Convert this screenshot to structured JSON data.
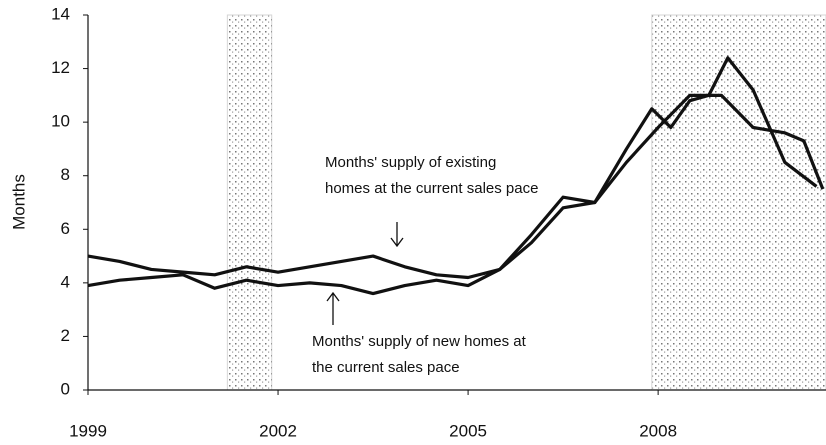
{
  "chart_data": {
    "type": "line",
    "y_label": "Months",
    "xlim": [
      1999,
      2010.65
    ],
    "xticks": [
      1999,
      2002,
      2005,
      2008
    ],
    "ylim": [
      0,
      14
    ],
    "yticks": [
      0,
      2,
      4,
      6,
      8,
      10,
      12,
      14
    ],
    "shaded_periods": [
      [
        2001.2,
        2001.9
      ],
      [
        2007.9,
        2010.65
      ]
    ],
    "shade_color": "#999999",
    "series": [
      {
        "name": "Months' supply of existing homes at the current sales pace",
        "color": "#111111",
        "x": [
          1999,
          1999.5,
          2000,
          2000.5,
          2001,
          2001.5,
          2002,
          2002.5,
          2003,
          2003.5,
          2004,
          2004.5,
          2005,
          2005.5,
          2006,
          2006.5,
          2007,
          2007.5,
          2008,
          2008.5,
          2009,
          2009.5,
          2010,
          2010.3,
          2010.6
        ],
        "values": [
          5.0,
          4.8,
          4.5,
          4.4,
          4.3,
          4.6,
          4.4,
          4.6,
          4.8,
          5.0,
          4.6,
          4.3,
          4.2,
          4.5,
          5.5,
          6.8,
          7.0,
          8.5,
          9.8,
          11.0,
          11.0,
          9.8,
          9.6,
          9.3,
          7.5
        ]
      },
      {
        "name": "Months' supply of new homes at the current sales pace",
        "color": "#111111",
        "x": [
          1999,
          1999.5,
          2000,
          2000.5,
          2001,
          2001.5,
          2002,
          2002.5,
          2003,
          2003.5,
          2004,
          2004.5,
          2005,
          2005.5,
          2006,
          2006.5,
          2007,
          2007.5,
          2007.9,
          2008.2,
          2008.5,
          2008.8,
          2009.1,
          2009.5,
          2010,
          2010.5
        ],
        "values": [
          3.9,
          4.1,
          4.2,
          4.3,
          3.8,
          4.1,
          3.9,
          4.0,
          3.9,
          3.6,
          3.9,
          4.1,
          3.9,
          4.5,
          5.8,
          7.2,
          7.0,
          9.0,
          10.5,
          9.8,
          10.8,
          11.0,
          12.4,
          11.2,
          8.5,
          7.6
        ]
      }
    ],
    "annotations": [
      {
        "lines": [
          "Months' supply of existing",
          "homes at the current sales pace"
        ]
      },
      {
        "lines": [
          "Months' supply of new homes at",
          "the current sales pace"
        ]
      }
    ]
  }
}
